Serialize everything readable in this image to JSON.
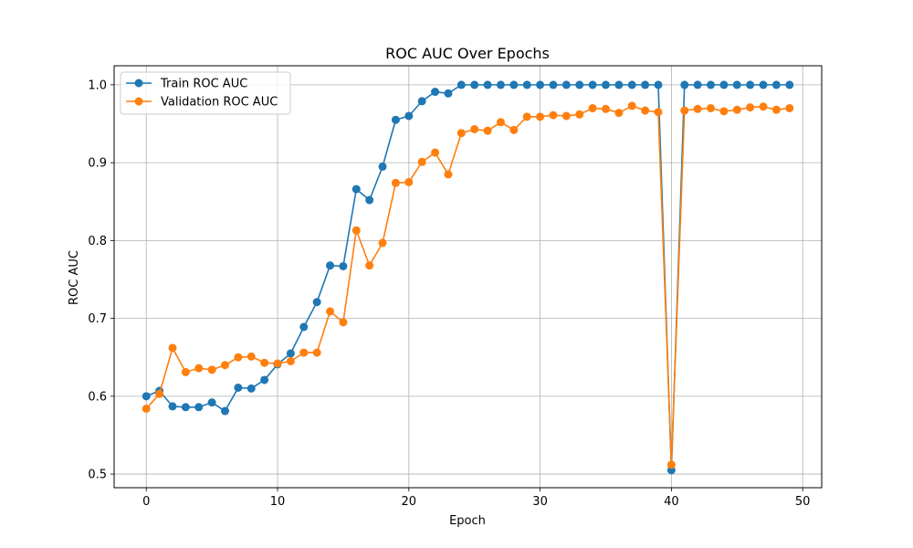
{
  "chart_data": {
    "type": "line",
    "title": "ROC AUC Over Epochs",
    "xlabel": "Epoch",
    "ylabel": "ROC AUC",
    "xlim": [
      -2.45,
      51.45
    ],
    "ylim": [
      0.4825,
      1.0245
    ],
    "xticks": [
      "0",
      "10",
      "20",
      "30",
      "40",
      "50"
    ],
    "yticks": [
      "0.5",
      "0.6",
      "0.7",
      "0.8",
      "0.9",
      "1.0"
    ],
    "grid": true,
    "legend_position": "upper-left",
    "x": [
      0,
      1,
      2,
      3,
      4,
      5,
      6,
      7,
      8,
      9,
      10,
      11,
      12,
      13,
      14,
      15,
      16,
      17,
      18,
      19,
      20,
      21,
      22,
      23,
      24,
      25,
      26,
      27,
      28,
      29,
      30,
      31,
      32,
      33,
      34,
      35,
      36,
      37,
      38,
      39,
      40,
      41,
      42,
      43,
      44,
      45,
      46,
      47,
      48,
      49
    ],
    "series": [
      {
        "name": "Train ROC AUC",
        "color": "#1f77b4",
        "values": [
          0.6,
          0.607,
          0.587,
          0.586,
          0.586,
          0.592,
          0.581,
          0.611,
          0.61,
          0.621,
          0.641,
          0.655,
          0.689,
          0.721,
          0.768,
          0.767,
          0.866,
          0.852,
          0.895,
          0.955,
          0.96,
          0.979,
          0.991,
          0.989,
          1.0,
          1.0,
          1.0,
          1.0,
          1.0,
          1.0,
          1.0,
          1.0,
          1.0,
          1.0,
          1.0,
          1.0,
          1.0,
          1.0,
          1.0,
          1.0,
          0.505,
          1.0,
          1.0,
          1.0,
          1.0,
          1.0,
          1.0,
          1.0,
          1.0,
          1.0
        ]
      },
      {
        "name": "Validation ROC AUC",
        "color": "#ff7f0e",
        "values": [
          0.584,
          0.603,
          0.662,
          0.631,
          0.636,
          0.634,
          0.64,
          0.65,
          0.651,
          0.643,
          0.642,
          0.645,
          0.656,
          0.656,
          0.709,
          0.695,
          0.813,
          0.768,
          0.797,
          0.874,
          0.875,
          0.901,
          0.913,
          0.885,
          0.938,
          0.943,
          0.941,
          0.952,
          0.942,
          0.959,
          0.959,
          0.961,
          0.96,
          0.962,
          0.97,
          0.969,
          0.964,
          0.973,
          0.967,
          0.965,
          0.512,
          0.967,
          0.969,
          0.97,
          0.966,
          0.968,
          0.971,
          0.972,
          0.968,
          0.97
        ]
      }
    ]
  }
}
